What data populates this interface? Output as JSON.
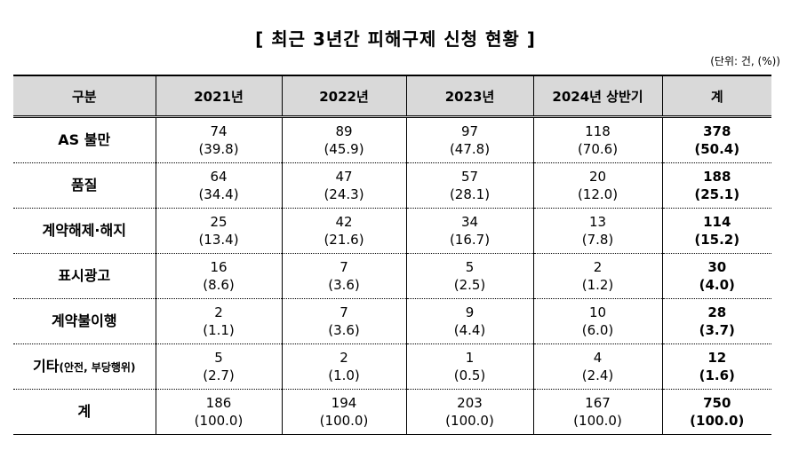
{
  "header": {
    "title": "[ 최근 3년간 피해구제 신청 현황 ]",
    "unit": "(단위: 건, (%))"
  },
  "table": {
    "columns": [
      "구분",
      "2021년",
      "2022년",
      "2023년",
      "2024년 상반기",
      "계"
    ],
    "rows": [
      {
        "label": "AS 불만",
        "cells": [
          [
            "74",
            "(39.8)"
          ],
          [
            "89",
            "(45.9)"
          ],
          [
            "97",
            "(47.8)"
          ],
          [
            "118",
            "(70.6)"
          ],
          [
            "378",
            "(50.4)"
          ]
        ]
      },
      {
        "label": "품질",
        "cells": [
          [
            "64",
            "(34.4)"
          ],
          [
            "47",
            "(24.3)"
          ],
          [
            "57",
            "(28.1)"
          ],
          [
            "20",
            "(12.0)"
          ],
          [
            "188",
            "(25.1)"
          ]
        ]
      },
      {
        "label": "계약해제·해지",
        "cells": [
          [
            "25",
            "(13.4)"
          ],
          [
            "42",
            "(21.6)"
          ],
          [
            "34",
            "(16.7)"
          ],
          [
            "13",
            "(7.8)"
          ],
          [
            "114",
            "(15.2)"
          ]
        ]
      },
      {
        "label": "표시광고",
        "cells": [
          [
            "16",
            "(8.6)"
          ],
          [
            "7",
            "(3.6)"
          ],
          [
            "5",
            "(2.5)"
          ],
          [
            "2",
            "(1.2)"
          ],
          [
            "30",
            "(4.0)"
          ]
        ]
      },
      {
        "label": "계약불이행",
        "cells": [
          [
            "2",
            "(1.1)"
          ],
          [
            "7",
            "(3.6)"
          ],
          [
            "9",
            "(4.4)"
          ],
          [
            "10",
            "(6.0)"
          ],
          [
            "28",
            "(3.7)"
          ]
        ]
      },
      {
        "label": "기타",
        "label_note": "(안전, 부당행위)",
        "cells": [
          [
            "5",
            "(2.7)"
          ],
          [
            "2",
            "(1.0)"
          ],
          [
            "1",
            "(0.5)"
          ],
          [
            "4",
            "(2.4)"
          ],
          [
            "12",
            "(1.6)"
          ]
        ]
      },
      {
        "label": "계",
        "cells": [
          [
            "186",
            "(100.0)"
          ],
          [
            "194",
            "(100.0)"
          ],
          [
            "203",
            "(100.0)"
          ],
          [
            "167",
            "(100.0)"
          ],
          [
            "750",
            "(100.0)"
          ]
        ]
      }
    ]
  }
}
